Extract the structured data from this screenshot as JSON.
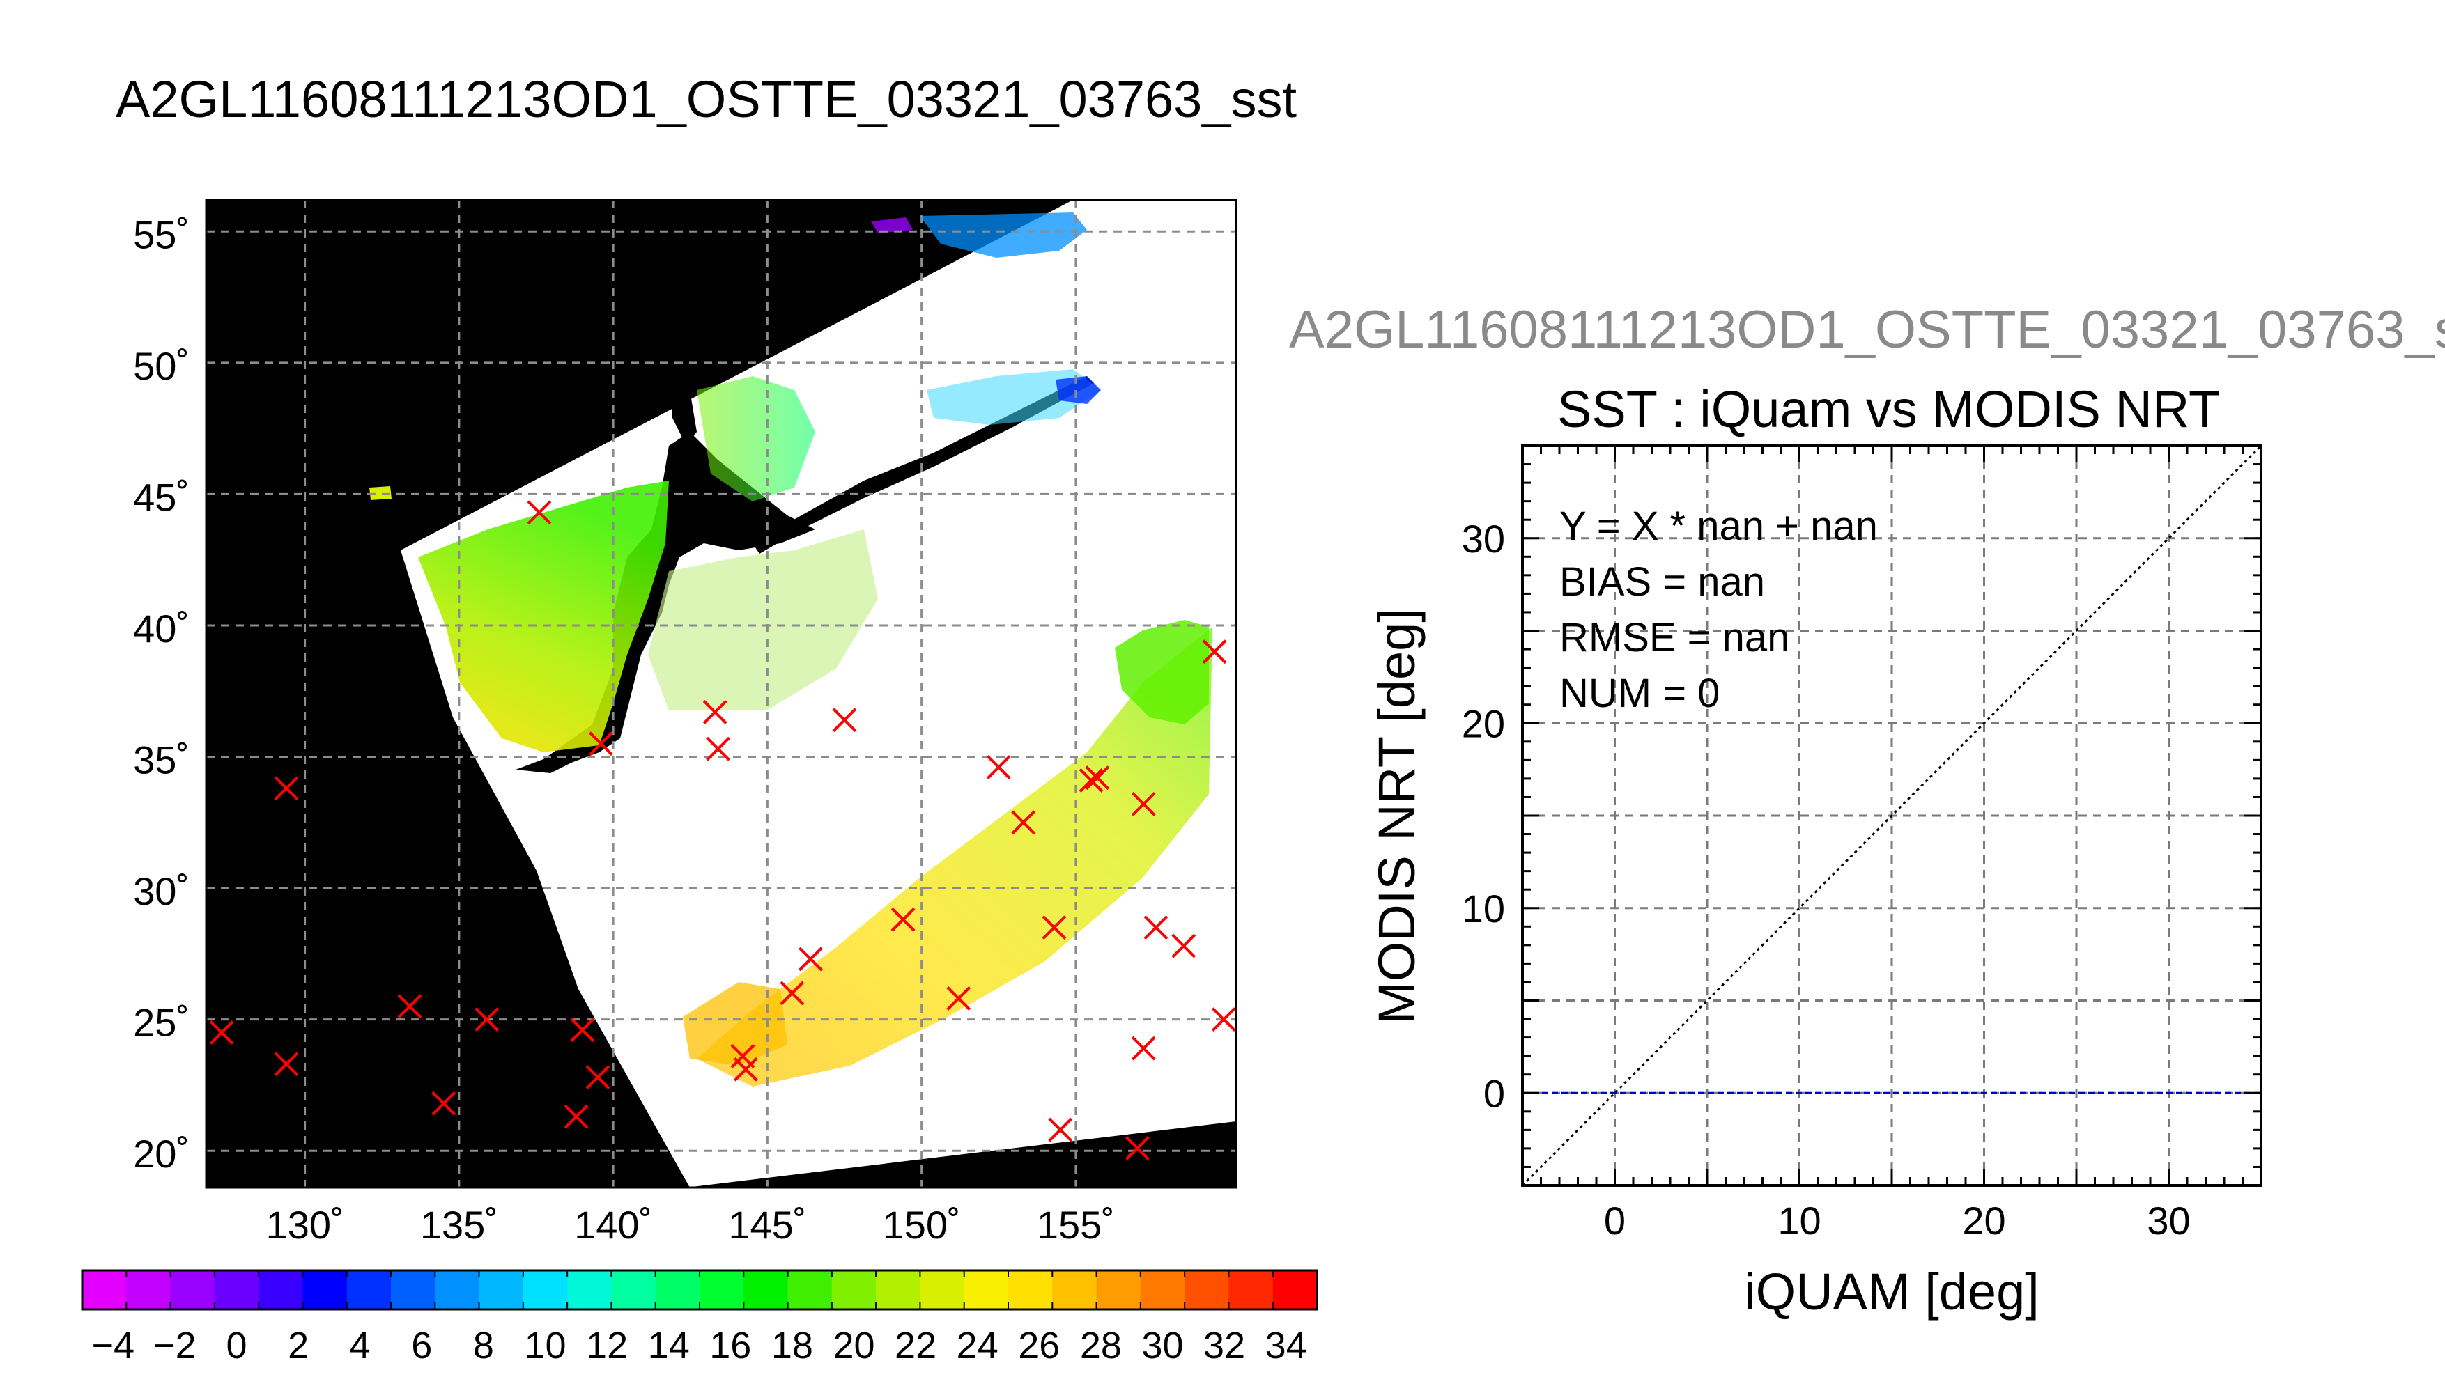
{
  "page": {
    "title": "A2GL11608111213OD1_OSTTE_03321_03763_sst"
  },
  "chart_data": [
    {
      "type": "map",
      "lat_ticks": [
        "55˚",
        "50˚",
        "45˚",
        "40˚",
        "35˚",
        "30˚",
        "25˚",
        "20˚"
      ],
      "lon_ticks": [
        "130˚",
        "135˚",
        "140˚",
        "145˚",
        "150˚",
        "155˚"
      ],
      "lat_range": [
        18.6,
        56.2
      ],
      "lon_range": [
        126.8,
        160.2
      ],
      "grid": true,
      "colorbar": {
        "ticks": [
          "−4",
          "−2",
          "0",
          "2",
          "4",
          "6",
          "8",
          "10",
          "12",
          "14",
          "16",
          "18",
          "20",
          "22",
          "24",
          "26",
          "28",
          "30",
          "32",
          "34"
        ],
        "range": [
          -5,
          35
        ],
        "colors": [
          "#e400ff",
          "#c200ff",
          "#9a00ff",
          "#6a00ff",
          "#3a00ff",
          "#0000ff",
          "#0030ff",
          "#0060ff",
          "#0090ff",
          "#00b8ff",
          "#00e0ff",
          "#00f8d8",
          "#00ffa0",
          "#00ff66",
          "#00ff30",
          "#00f000",
          "#40f000",
          "#80f000",
          "#b0f000",
          "#d8f000",
          "#f8f000",
          "#ffe000",
          "#ffc000",
          "#ff9c00",
          "#ff7800",
          "#ff5000",
          "#ff2800",
          "#ff0000"
        ]
      },
      "buoy_marker_color": "#ff0000",
      "buoys": [
        {
          "lon": 127.3,
          "lat": 24.5
        },
        {
          "lon": 129.4,
          "lat": 33.8
        },
        {
          "lon": 129.4,
          "lat": 23.3
        },
        {
          "lon": 133.4,
          "lat": 25.5
        },
        {
          "lon": 134.5,
          "lat": 21.8
        },
        {
          "lon": 135.9,
          "lat": 25.0
        },
        {
          "lon": 137.6,
          "lat": 44.3
        },
        {
          "lon": 138.8,
          "lat": 21.3
        },
        {
          "lon": 139.0,
          "lat": 24.6
        },
        {
          "lon": 139.5,
          "lat": 22.8
        },
        {
          "lon": 139.6,
          "lat": 35.5
        },
        {
          "lon": 143.3,
          "lat": 36.7
        },
        {
          "lon": 143.4,
          "lat": 35.3
        },
        {
          "lon": 144.2,
          "lat": 23.6
        },
        {
          "lon": 144.3,
          "lat": 23.1
        },
        {
          "lon": 145.8,
          "lat": 26.0
        },
        {
          "lon": 146.4,
          "lat": 27.3
        },
        {
          "lon": 147.5,
          "lat": 36.4
        },
        {
          "lon": 149.4,
          "lat": 28.8
        },
        {
          "lon": 151.2,
          "lat": 25.8
        },
        {
          "lon": 152.5,
          "lat": 34.6
        },
        {
          "lon": 153.3,
          "lat": 32.5
        },
        {
          "lon": 154.3,
          "lat": 28.5
        },
        {
          "lon": 154.5,
          "lat": 20.8
        },
        {
          "lon": 155.5,
          "lat": 34.1
        },
        {
          "lon": 155.7,
          "lat": 34.2
        },
        {
          "lon": 157.0,
          "lat": 20.1
        },
        {
          "lon": 157.2,
          "lat": 23.9
        },
        {
          "lon": 157.2,
          "lat": 33.2
        },
        {
          "lon": 157.6,
          "lat": 28.5
        },
        {
          "lon": 158.5,
          "lat": 27.8
        },
        {
          "lon": 159.5,
          "lat": 39.0
        },
        {
          "lon": 159.8,
          "lat": 25.0
        }
      ]
    },
    {
      "type": "scatter",
      "title": "SST : iQuam vs MODIS NRT",
      "super_title": "A2GL11608111213OD1_OSTTE_03321_03763_s",
      "xlabel": "iQUAM [deg]",
      "ylabel": "MODIS NRT [deg]",
      "xlim": [
        -5,
        35
      ],
      "ylim": [
        -5,
        35
      ],
      "xticks": [
        0,
        10,
        20,
        30
      ],
      "yticks": [
        0,
        10,
        20,
        30
      ],
      "grid": true,
      "series": [],
      "reference_lines": [
        {
          "kind": "identity",
          "style": "dotted",
          "color": "#000000"
        },
        {
          "kind": "fit",
          "y": 0,
          "style": "dashed",
          "color": "#0000cc"
        }
      ],
      "stats": [
        "Y = X * nan + nan",
        "BIAS = nan",
        "RMSE = nan",
        "NUM = 0"
      ]
    }
  ]
}
